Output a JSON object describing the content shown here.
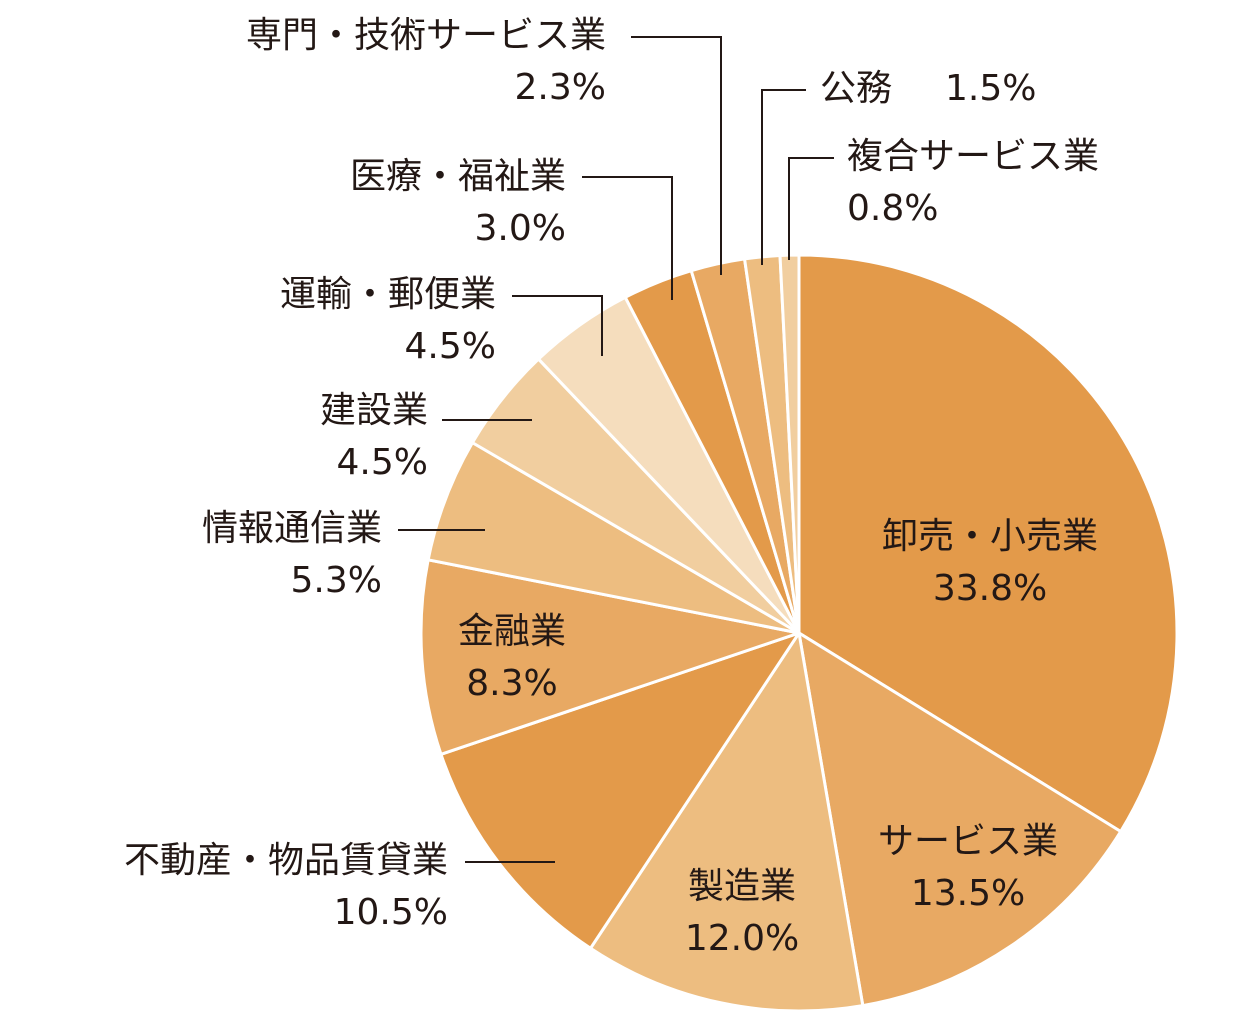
{
  "chart_data": {
    "type": "pie",
    "title": "",
    "start_angle_deg": 0,
    "direction": "clockwise",
    "slices": [
      {
        "label": "卸売・小売業",
        "value": 33.8,
        "value_label": "33.8%",
        "color": "#e39a4a"
      },
      {
        "label": "サービス業",
        "value": 13.5,
        "value_label": "13.5%",
        "color": "#e8a963"
      },
      {
        "label": "製造業",
        "value": 12.0,
        "value_label": "12.0%",
        "color": "#edbd80"
      },
      {
        "label": "不動産・物品賃貸業",
        "value": 10.5,
        "value_label": "10.5%",
        "color": "#e39a4a"
      },
      {
        "label": "金融業",
        "value": 8.3,
        "value_label": "8.3%",
        "color": "#e8a963"
      },
      {
        "label": "情報通信業",
        "value": 5.3,
        "value_label": "5.3%",
        "color": "#edbd80"
      },
      {
        "label": "建設業",
        "value": 4.5,
        "value_label": "4.5%",
        "color": "#f1ce9f"
      },
      {
        "label": "運輸・郵便業",
        "value": 4.5,
        "value_label": "4.5%",
        "color": "#f5ddbd"
      },
      {
        "label": "医療・福祉業",
        "value": 3.0,
        "value_label": "3.0%",
        "color": "#e39a4a"
      },
      {
        "label": "専門・技術サービス業",
        "value": 2.3,
        "value_label": "2.3%",
        "color": "#e8a963"
      },
      {
        "label": "公務",
        "value": 1.5,
        "value_label": "1.5%",
        "color": "#edbd80"
      },
      {
        "label": "複合サービス業",
        "value": 0.8,
        "value_label": "0.8%",
        "color": "#f1ce9f"
      }
    ]
  }
}
